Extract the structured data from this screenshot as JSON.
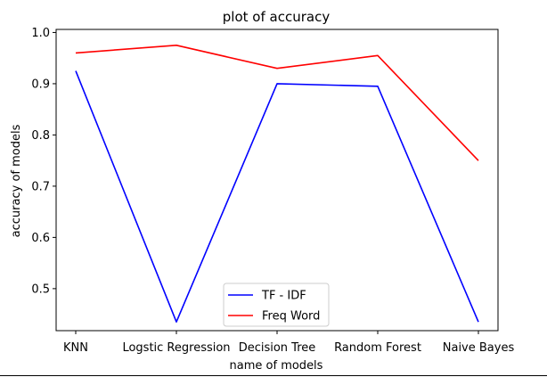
{
  "chart_data": {
    "type": "line",
    "title": "plot of accuracy",
    "xlabel": "name of models",
    "ylabel": "accuracy of models",
    "categories": [
      "KNN",
      "Logstic Regression",
      "Decision Tree",
      "Random Forest",
      "Naive Bayes"
    ],
    "ylim": [
      0.418,
      1.006
    ],
    "yticks": [
      0.5,
      0.6,
      0.7,
      0.8,
      0.9,
      1.0
    ],
    "ytick_labels": [
      "0.5",
      "0.6",
      "0.7",
      "0.8",
      "0.9",
      "1.0"
    ],
    "grid": false,
    "legend_position": "bottom-center",
    "series": [
      {
        "name": "TF - IDF",
        "color": "#0000ff",
        "values": [
          0.925,
          0.435,
          0.9,
          0.895,
          0.435
        ]
      },
      {
        "name": "Freq Word",
        "color": "#ff0000",
        "values": [
          0.96,
          0.975,
          0.93,
          0.955,
          0.75
        ]
      }
    ]
  }
}
